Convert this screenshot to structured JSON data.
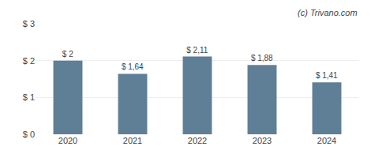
{
  "chart_data": {
    "type": "bar",
    "categories": [
      "2020",
      "2021",
      "2022",
      "2023",
      "2024"
    ],
    "values": [
      2.0,
      1.64,
      2.11,
      1.88,
      1.41
    ],
    "value_labels": [
      "$ 2",
      "$ 1,64",
      "$ 2,11",
      "$ 1,88",
      "$ 1,41"
    ],
    "data_labels": true,
    "color": "#5f7f96",
    "ylim": [
      0,
      3.0
    ],
    "yticks": [
      {
        "value": 0,
        "label": "$ 0"
      },
      {
        "value": 1,
        "label": "$ 1"
      },
      {
        "value": 2,
        "label": "$ 2"
      },
      {
        "value": 3,
        "label": "$ 3"
      }
    ],
    "grid": true,
    "annotations": [
      "(c) Trivano.com"
    ]
  }
}
